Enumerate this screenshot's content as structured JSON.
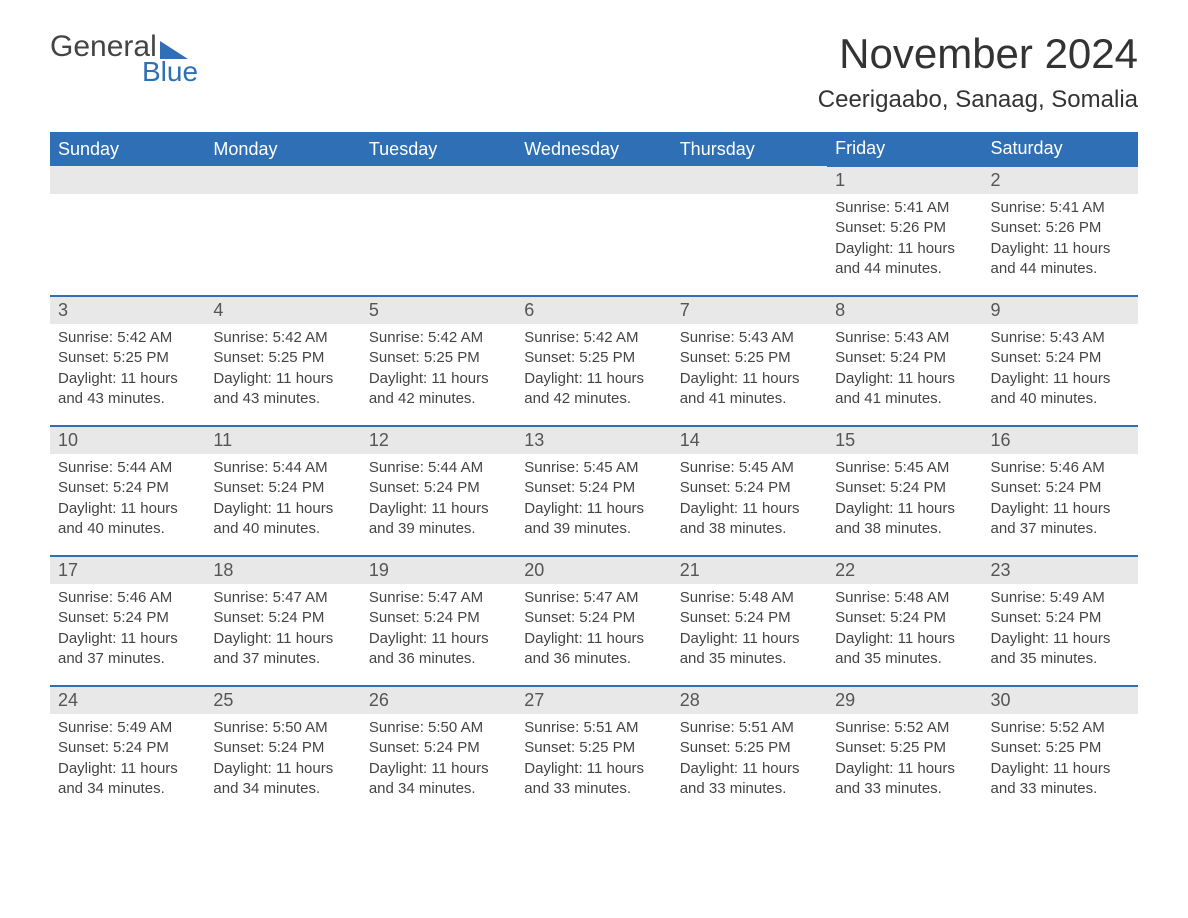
{
  "brand": {
    "text1": "General",
    "text2": "Blue",
    "accent_color": "#2f6fb5"
  },
  "title": "November 2024",
  "location": "Ceerigaabo, Sanaag, Somalia",
  "colors": {
    "header_bg": "#2f6fb5",
    "header_text": "#ffffff",
    "daynum_bg": "#e8e8e8",
    "row_border": "#2f6fb5",
    "body_text": "#444444",
    "background": "#ffffff"
  },
  "typography": {
    "title_fontsize": 42,
    "location_fontsize": 24,
    "weekday_fontsize": 18,
    "daynum_fontsize": 18,
    "body_fontsize": 15,
    "font_family": "Arial"
  },
  "weekdays": [
    "Sunday",
    "Monday",
    "Tuesday",
    "Wednesday",
    "Thursday",
    "Friday",
    "Saturday"
  ],
  "weeks": [
    [
      null,
      null,
      null,
      null,
      null,
      {
        "n": 1,
        "sunrise": "5:41 AM",
        "sunset": "5:26 PM",
        "daylight": "11 hours and 44 minutes."
      },
      {
        "n": 2,
        "sunrise": "5:41 AM",
        "sunset": "5:26 PM",
        "daylight": "11 hours and 44 minutes."
      }
    ],
    [
      {
        "n": 3,
        "sunrise": "5:42 AM",
        "sunset": "5:25 PM",
        "daylight": "11 hours and 43 minutes."
      },
      {
        "n": 4,
        "sunrise": "5:42 AM",
        "sunset": "5:25 PM",
        "daylight": "11 hours and 43 minutes."
      },
      {
        "n": 5,
        "sunrise": "5:42 AM",
        "sunset": "5:25 PM",
        "daylight": "11 hours and 42 minutes."
      },
      {
        "n": 6,
        "sunrise": "5:42 AM",
        "sunset": "5:25 PM",
        "daylight": "11 hours and 42 minutes."
      },
      {
        "n": 7,
        "sunrise": "5:43 AM",
        "sunset": "5:25 PM",
        "daylight": "11 hours and 41 minutes."
      },
      {
        "n": 8,
        "sunrise": "5:43 AM",
        "sunset": "5:24 PM",
        "daylight": "11 hours and 41 minutes."
      },
      {
        "n": 9,
        "sunrise": "5:43 AM",
        "sunset": "5:24 PM",
        "daylight": "11 hours and 40 minutes."
      }
    ],
    [
      {
        "n": 10,
        "sunrise": "5:44 AM",
        "sunset": "5:24 PM",
        "daylight": "11 hours and 40 minutes."
      },
      {
        "n": 11,
        "sunrise": "5:44 AM",
        "sunset": "5:24 PM",
        "daylight": "11 hours and 40 minutes."
      },
      {
        "n": 12,
        "sunrise": "5:44 AM",
        "sunset": "5:24 PM",
        "daylight": "11 hours and 39 minutes."
      },
      {
        "n": 13,
        "sunrise": "5:45 AM",
        "sunset": "5:24 PM",
        "daylight": "11 hours and 39 minutes."
      },
      {
        "n": 14,
        "sunrise": "5:45 AM",
        "sunset": "5:24 PM",
        "daylight": "11 hours and 38 minutes."
      },
      {
        "n": 15,
        "sunrise": "5:45 AM",
        "sunset": "5:24 PM",
        "daylight": "11 hours and 38 minutes."
      },
      {
        "n": 16,
        "sunrise": "5:46 AM",
        "sunset": "5:24 PM",
        "daylight": "11 hours and 37 minutes."
      }
    ],
    [
      {
        "n": 17,
        "sunrise": "5:46 AM",
        "sunset": "5:24 PM",
        "daylight": "11 hours and 37 minutes."
      },
      {
        "n": 18,
        "sunrise": "5:47 AM",
        "sunset": "5:24 PM",
        "daylight": "11 hours and 37 minutes."
      },
      {
        "n": 19,
        "sunrise": "5:47 AM",
        "sunset": "5:24 PM",
        "daylight": "11 hours and 36 minutes."
      },
      {
        "n": 20,
        "sunrise": "5:47 AM",
        "sunset": "5:24 PM",
        "daylight": "11 hours and 36 minutes."
      },
      {
        "n": 21,
        "sunrise": "5:48 AM",
        "sunset": "5:24 PM",
        "daylight": "11 hours and 35 minutes."
      },
      {
        "n": 22,
        "sunrise": "5:48 AM",
        "sunset": "5:24 PM",
        "daylight": "11 hours and 35 minutes."
      },
      {
        "n": 23,
        "sunrise": "5:49 AM",
        "sunset": "5:24 PM",
        "daylight": "11 hours and 35 minutes."
      }
    ],
    [
      {
        "n": 24,
        "sunrise": "5:49 AM",
        "sunset": "5:24 PM",
        "daylight": "11 hours and 34 minutes."
      },
      {
        "n": 25,
        "sunrise": "5:50 AM",
        "sunset": "5:24 PM",
        "daylight": "11 hours and 34 minutes."
      },
      {
        "n": 26,
        "sunrise": "5:50 AM",
        "sunset": "5:24 PM",
        "daylight": "11 hours and 34 minutes."
      },
      {
        "n": 27,
        "sunrise": "5:51 AM",
        "sunset": "5:25 PM",
        "daylight": "11 hours and 33 minutes."
      },
      {
        "n": 28,
        "sunrise": "5:51 AM",
        "sunset": "5:25 PM",
        "daylight": "11 hours and 33 minutes."
      },
      {
        "n": 29,
        "sunrise": "5:52 AM",
        "sunset": "5:25 PM",
        "daylight": "11 hours and 33 minutes."
      },
      {
        "n": 30,
        "sunrise": "5:52 AM",
        "sunset": "5:25 PM",
        "daylight": "11 hours and 33 minutes."
      }
    ]
  ],
  "labels": {
    "sunrise": "Sunrise:",
    "sunset": "Sunset:",
    "daylight": "Daylight:"
  }
}
